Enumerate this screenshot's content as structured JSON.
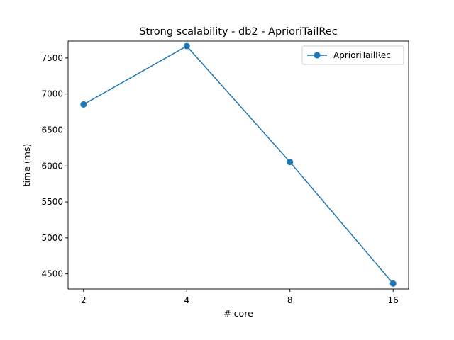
{
  "chart_data": {
    "type": "line",
    "title": "Strong scalability - db2 - AprioriTailRec",
    "xlabel": "# core",
    "ylabel": "time (ms)",
    "x_scale": "log2",
    "x": [
      2,
      4,
      8,
      16
    ],
    "x_tick_labels": [
      "2",
      "4",
      "8",
      "16"
    ],
    "y_ticks": [
      4500,
      5000,
      5500,
      6000,
      6500,
      7000,
      7500
    ],
    "y_tick_labels": [
      "4500",
      "5000",
      "5500",
      "6000",
      "6500",
      "7000",
      "7500"
    ],
    "ylim": [
      4290,
      7735
    ],
    "grid": false,
    "legend_position": "top-right",
    "series": [
      {
        "name": "AprioriTailRec",
        "color": "#1f77b4",
        "marker": "circle",
        "values": [
          6855,
          7665,
          6055,
          4365
        ]
      }
    ]
  }
}
